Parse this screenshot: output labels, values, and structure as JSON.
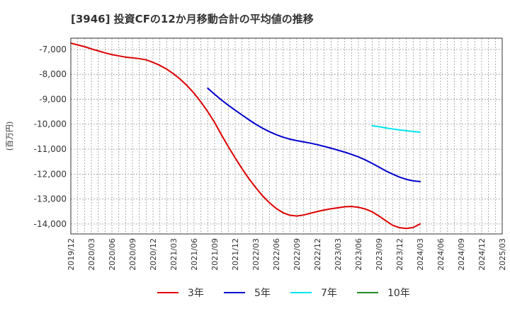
{
  "chart_data": {
    "type": "line",
    "title": "[3946]  投資CFの12か月移動合計の平均値の推移",
    "ylabel": "(百万円)",
    "xlabel": "",
    "ylim": [
      -14400,
      -6550
    ],
    "yticks": [
      -14000,
      -13000,
      -12000,
      -11000,
      -10000,
      -9000,
      -8000,
      -7000
    ],
    "ytick_labels": [
      "-14,000",
      "-13,000",
      "-12,000",
      "-11,000",
      "-10,000",
      "-9,000",
      "-8,000",
      "-7,000"
    ],
    "x_start": "2019/12",
    "x_end": "2025/03",
    "x_tick_labels": [
      "2019/12",
      "2020/03",
      "2020/06",
      "2020/09",
      "2020/12",
      "2021/03",
      "2021/06",
      "2021/09",
      "2021/12",
      "2022/03",
      "2022/06",
      "2022/09",
      "2022/12",
      "2023/03",
      "2023/06",
      "2023/09",
      "2023/12",
      "2024/03",
      "2024/06",
      "2024/09",
      "2024/12",
      "2025/03"
    ],
    "grid": true,
    "legend_position": "bottom",
    "series": [
      {
        "name": "3年",
        "color": "#dd0000",
        "points": [
          [
            "2019/12",
            -6750
          ],
          [
            "2020/01",
            -6820
          ],
          [
            "2020/02",
            -6890
          ],
          [
            "2020/03",
            -6980
          ],
          [
            "2020/04",
            -7060
          ],
          [
            "2020/05",
            -7140
          ],
          [
            "2020/06",
            -7210
          ],
          [
            "2020/07",
            -7260
          ],
          [
            "2020/08",
            -7310
          ],
          [
            "2020/09",
            -7340
          ],
          [
            "2020/10",
            -7370
          ],
          [
            "2020/11",
            -7420
          ],
          [
            "2020/12",
            -7520
          ],
          [
            "2021/01",
            -7640
          ],
          [
            "2021/02",
            -7790
          ],
          [
            "2021/03",
            -7980
          ],
          [
            "2021/04",
            -8200
          ],
          [
            "2021/05",
            -8460
          ],
          [
            "2021/06",
            -8760
          ],
          [
            "2021/07",
            -9110
          ],
          [
            "2021/08",
            -9500
          ],
          [
            "2021/09",
            -9930
          ],
          [
            "2021/10",
            -10430
          ],
          [
            "2021/11",
            -10900
          ],
          [
            "2021/12",
            -11350
          ],
          [
            "2022/01",
            -11780
          ],
          [
            "2022/02",
            -12180
          ],
          [
            "2022/03",
            -12540
          ],
          [
            "2022/04",
            -12870
          ],
          [
            "2022/05",
            -13150
          ],
          [
            "2022/06",
            -13380
          ],
          [
            "2022/07",
            -13550
          ],
          [
            "2022/08",
            -13650
          ],
          [
            "2022/09",
            -13680
          ],
          [
            "2022/10",
            -13640
          ],
          [
            "2022/11",
            -13570
          ],
          [
            "2022/12",
            -13500
          ],
          [
            "2023/01",
            -13440
          ],
          [
            "2023/02",
            -13390
          ],
          [
            "2023/03",
            -13350
          ],
          [
            "2023/04",
            -13310
          ],
          [
            "2023/05",
            -13300
          ],
          [
            "2023/06",
            -13330
          ],
          [
            "2023/07",
            -13400
          ],
          [
            "2023/08",
            -13510
          ],
          [
            "2023/09",
            -13680
          ],
          [
            "2023/10",
            -13870
          ],
          [
            "2023/11",
            -14050
          ],
          [
            "2023/12",
            -14150
          ],
          [
            "2024/01",
            -14180
          ],
          [
            "2024/02",
            -14140
          ],
          [
            "2024/03",
            -14000
          ]
        ]
      },
      {
        "name": "5年",
        "color": "#0000cc",
        "points": [
          [
            "2021/08",
            -8560
          ],
          [
            "2021/09",
            -8800
          ],
          [
            "2021/10",
            -9030
          ],
          [
            "2021/11",
            -9240
          ],
          [
            "2021/12",
            -9440
          ],
          [
            "2022/01",
            -9630
          ],
          [
            "2022/02",
            -9820
          ],
          [
            "2022/03",
            -10000
          ],
          [
            "2022/04",
            -10160
          ],
          [
            "2022/05",
            -10300
          ],
          [
            "2022/06",
            -10420
          ],
          [
            "2022/07",
            -10520
          ],
          [
            "2022/08",
            -10600
          ],
          [
            "2022/09",
            -10660
          ],
          [
            "2022/10",
            -10710
          ],
          [
            "2022/11",
            -10760
          ],
          [
            "2022/12",
            -10820
          ],
          [
            "2023/01",
            -10890
          ],
          [
            "2023/02",
            -10960
          ],
          [
            "2023/03",
            -11040
          ],
          [
            "2023/04",
            -11120
          ],
          [
            "2023/05",
            -11210
          ],
          [
            "2023/06",
            -11310
          ],
          [
            "2023/07",
            -11430
          ],
          [
            "2023/08",
            -11570
          ],
          [
            "2023/09",
            -11720
          ],
          [
            "2023/10",
            -11870
          ],
          [
            "2023/11",
            -12000
          ],
          [
            "2023/12",
            -12120
          ],
          [
            "2024/01",
            -12210
          ],
          [
            "2024/02",
            -12270
          ],
          [
            "2024/03",
            -12300
          ]
        ]
      },
      {
        "name": "7年",
        "color": "#00e5ee",
        "points": [
          [
            "2023/08",
            -10060
          ],
          [
            "2023/09",
            -10100
          ],
          [
            "2023/10",
            -10150
          ],
          [
            "2023/11",
            -10190
          ],
          [
            "2023/12",
            -10230
          ],
          [
            "2024/01",
            -10260
          ],
          [
            "2024/02",
            -10290
          ],
          [
            "2024/03",
            -10320
          ]
        ]
      },
      {
        "name": "10年",
        "color": "#228b22",
        "points": []
      }
    ]
  }
}
